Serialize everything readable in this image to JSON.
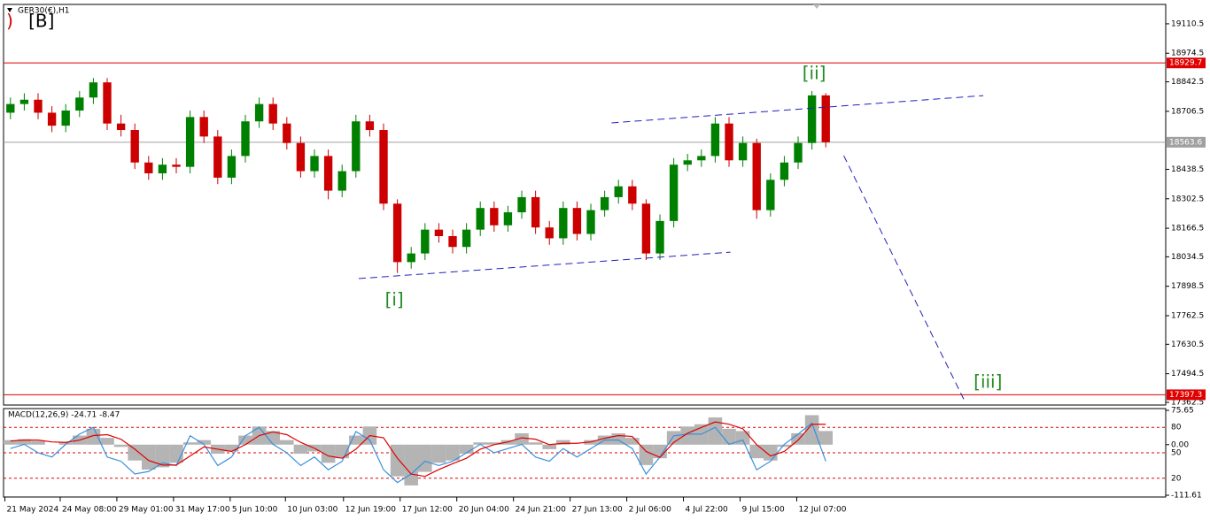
{
  "chart_data": [
    {
      "type": "candlestick",
      "title": "GER30(€),H1",
      "xlim": [
        -0.5,
        83.6
      ],
      "ylim": [
        17350,
        19200
      ],
      "yticks": [
        19110.5,
        18974.5,
        18842.5,
        18706.5,
        18438.5,
        18302.5,
        18166.5,
        18034.5,
        17898.5,
        17762.5,
        17630.5,
        17494.5,
        17362.5
      ],
      "xticks": [
        {
          "value": -0.4,
          "label": "21 May 2024"
        },
        {
          "value": 3.6,
          "label": "24 May 08:00"
        },
        {
          "value": 7.7,
          "label": "29 May 01:00"
        },
        {
          "value": 11.8,
          "label": "31 May 17:00"
        },
        {
          "value": 15.9,
          "label": "5 Jun 10:00"
        },
        {
          "value": 19.9,
          "label": "10 Jun 03:00"
        },
        {
          "value": 24.1,
          "label": "12 Jun 19:00"
        },
        {
          "value": 28.2,
          "label": "17 Jun 12:00"
        },
        {
          "value": 32.3,
          "label": "20 Jun 04:00"
        },
        {
          "value": 36.4,
          "label": "24 Jun 21:00"
        },
        {
          "value": 40.5,
          "label": "27 Jun 13:00"
        },
        {
          "value": 44.6,
          "label": "2 Jul 06:00"
        },
        {
          "value": 48.7,
          "label": "4 Jul 22:00"
        },
        {
          "value": 52.8,
          "label": "9 Jul 15:00"
        },
        {
          "value": 56.9,
          "label": "12 Jul 07:00"
        }
      ],
      "up_color": "#008000",
      "down_color": "#cc0000",
      "open": [
        18700,
        18740,
        18760,
        18700,
        18640,
        18710,
        18770,
        18840,
        18650,
        18620,
        18470,
        18420,
        18460,
        18450,
        18680,
        18590,
        18400,
        18500,
        18660,
        18740,
        18650,
        18560,
        18430,
        18500,
        18340,
        18430,
        18660,
        18620,
        18280,
        18010,
        18050,
        18160,
        18130,
        18080,
        18160,
        18260,
        18180,
        18240,
        18310,
        18170,
        18120,
        18260,
        18140,
        18250,
        18310,
        18360,
        18280,
        18050,
        18200,
        18460,
        18480,
        18500,
        18650,
        18480,
        18560,
        18250,
        18390,
        18470,
        18560,
        18780
      ],
      "high": [
        18770,
        18790,
        18790,
        18730,
        18740,
        18800,
        18860,
        18860,
        18690,
        18650,
        18500,
        18490,
        18490,
        18710,
        18710,
        18620,
        18530,
        18690,
        18770,
        18770,
        18680,
        18590,
        18530,
        18530,
        18460,
        18690,
        18690,
        18650,
        18300,
        18080,
        18190,
        18190,
        18160,
        18190,
        18290,
        18290,
        18270,
        18340,
        18340,
        18200,
        18290,
        18290,
        18280,
        18340,
        18390,
        18390,
        18300,
        18230,
        18490,
        18510,
        18530,
        18680,
        18680,
        18590,
        18580,
        18420,
        18500,
        18590,
        18800,
        18790
      ],
      "low": [
        18670,
        18710,
        18670,
        18610,
        18610,
        18680,
        18740,
        18620,
        18590,
        18440,
        18390,
        18390,
        18420,
        18420,
        18560,
        18370,
        18370,
        18470,
        18630,
        18620,
        18530,
        18400,
        18400,
        18300,
        18310,
        18400,
        18590,
        18250,
        17960,
        17980,
        18020,
        18100,
        18050,
        18050,
        18130,
        18150,
        18150,
        18210,
        18140,
        18090,
        18090,
        18110,
        18110,
        18220,
        18280,
        18250,
        18020,
        18020,
        18170,
        18430,
        18450,
        18470,
        18450,
        18450,
        18210,
        18220,
        18360,
        18440,
        18530,
        18540
      ],
      "close": [
        18740,
        18760,
        18700,
        18640,
        18710,
        18770,
        18840,
        18650,
        18620,
        18470,
        18420,
        18460,
        18450,
        18680,
        18590,
        18400,
        18500,
        18660,
        18740,
        18650,
        18560,
        18430,
        18500,
        18340,
        18430,
        18660,
        18620,
        18280,
        18010,
        18050,
        18160,
        18130,
        18080,
        18160,
        18260,
        18180,
        18240,
        18310,
        18170,
        18120,
        18260,
        18140,
        18250,
        18310,
        18360,
        18280,
        18050,
        18200,
        18460,
        18480,
        18500,
        18650,
        18480,
        18560,
        18250,
        18390,
        18470,
        18560,
        18780,
        18563.6
      ],
      "levels": [
        {
          "value": 18929.7,
          "color": "#e00000"
        },
        {
          "value": 18563.6,
          "color": "#a0a0a0"
        },
        {
          "value": 17397.3,
          "color": "#e00000"
        }
      ],
      "trendlines": [
        {
          "x": [
            25.2,
            52.1
          ],
          "y": [
            17934,
            18056
          ]
        },
        {
          "x": [
            43.5,
            70.4
          ],
          "y": [
            18653,
            18779
          ]
        },
        {
          "x": [
            60.3,
            69.1
          ],
          "y": [
            18502,
            17362
          ]
        }
      ],
      "trendline_color": "#2020c0",
      "annotations": [
        {
          "text": ")",
          "x": -0.3,
          "y": 19118,
          "color": "#cc0000"
        },
        {
          "text": "[B]",
          "x": 1.3,
          "y": 19118,
          "color": "#000000"
        },
        {
          "text": "[i]",
          "x": 27.1,
          "y": 17832,
          "color": "#228b22"
        },
        {
          "text": "[ii]",
          "x": 57.3,
          "y": 18877,
          "color": "#228b22"
        },
        {
          "text": "[iii]",
          "x": 69.7,
          "y": 17452,
          "color": "#228b22"
        }
      ]
    },
    {
      "type": "macd",
      "title": "MACD(12,26,9) -24.71 -8.47",
      "xlim": [
        -0.5,
        83.6
      ],
      "ylim": [
        -111.61,
        75.65
      ],
      "yticks": [
        75.65,
        {
          "value": 0,
          "label": "0.00"
        },
        -111.61
      ],
      "y2lim": [
        0,
        100
      ],
      "y2ticks": [
        80,
        50,
        20
      ],
      "histogram": {
        "color": "#b4b4b4",
        "values": [
          10,
          12,
          8,
          0,
          5,
          20,
          35,
          15,
          -5,
          -35,
          -55,
          -50,
          -40,
          5,
          10,
          -20,
          -15,
          20,
          40,
          30,
          10,
          -20,
          -15,
          -40,
          -30,
          20,
          40,
          0,
          -70,
          -90,
          -60,
          -40,
          -35,
          -20,
          5,
          5,
          10,
          25,
          5,
          -10,
          10,
          0,
          10,
          20,
          25,
          15,
          -45,
          -30,
          30,
          40,
          45,
          60,
          35,
          30,
          -30,
          -35,
          -5,
          25,
          65,
          30
        ]
      },
      "signal": {
        "color": "#e00000",
        "values": [
          8,
          10,
          10,
          6,
          5,
          10,
          20,
          22,
          12,
          -10,
          -35,
          -45,
          -45,
          -25,
          -5,
          -10,
          -15,
          0,
          20,
          28,
          22,
          5,
          -8,
          -25,
          -30,
          -10,
          20,
          15,
          -30,
          -65,
          -70,
          -55,
          -42,
          -30,
          -10,
          0,
          6,
          15,
          12,
          0,
          3,
          3,
          6,
          14,
          20,
          18,
          -15,
          -28,
          5,
          25,
          38,
          50,
          45,
          35,
          0,
          -25,
          -15,
          10,
          45,
          45
        ]
      },
      "oscillator": {
        "color": "#3a8fdc",
        "axis": "y2",
        "values": [
          55,
          60,
          50,
          45,
          60,
          72,
          80,
          45,
          40,
          25,
          28,
          38,
          35,
          70,
          60,
          35,
          45,
          70,
          80,
          60,
          50,
          35,
          45,
          30,
          40,
          75,
          65,
          30,
          15,
          25,
          40,
          35,
          40,
          50,
          60,
          50,
          55,
          60,
          45,
          40,
          55,
          45,
          55,
          65,
          65,
          55,
          25,
          45,
          70,
          72,
          72,
          80,
          60,
          65,
          30,
          40,
          60,
          72,
          85,
          40
        ]
      }
    }
  ]
}
